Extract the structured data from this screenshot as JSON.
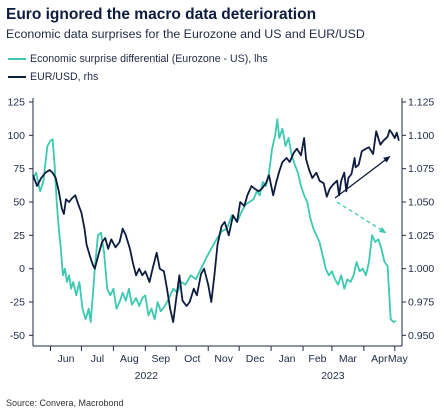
{
  "title": "Euro ignored the macro data deterioration",
  "subtitle": "Economic data surprises for the Eurozone and US and EUR/USD",
  "source": "Source: Convera, Macrobond",
  "colors": {
    "surprise": "#3cc9b0",
    "eurusd": "#0d1b3e",
    "axis": "#1f2a44",
    "grid": "#ffffff"
  },
  "chart_data": {
    "type": "line",
    "title": "Euro ignored the macro data deterioration",
    "subtitle": "Economic data surprises for the Eurozone and US and EUR/USD",
    "legend_position": "top-left",
    "grid": false,
    "x_tick_labels": [
      "Jun",
      "Jul",
      "Aug",
      "Sep",
      "Oct",
      "Nov",
      "Dec",
      "Jan",
      "Feb",
      "Mar",
      "Apr",
      "May"
    ],
    "x_tick_dates": [
      "2022-06-01",
      "2022-07-01",
      "2022-08-01",
      "2022-09-01",
      "2022-10-01",
      "2022-11-01",
      "2022-12-01",
      "2023-01-01",
      "2023-02-01",
      "2023-03-01",
      "2023-04-01",
      "2023-05-01"
    ],
    "year_labels": [
      {
        "label": "2022",
        "date": "2022-09-01"
      },
      {
        "label": "2023",
        "date": "2023-03-01"
      }
    ],
    "xlim": [
      "2022-05-15",
      "2023-05-08"
    ],
    "y_left": {
      "ylim": [
        -55,
        125
      ],
      "ticks": [
        125,
        100,
        75,
        50,
        25,
        0,
        -25,
        -50
      ],
      "tick_labels": [
        "125",
        "100",
        "75",
        "50",
        "25",
        "0",
        "-25",
        "-50"
      ]
    },
    "y_right": {
      "ylim": [
        0.945,
        1.125
      ],
      "ticks": [
        1.125,
        1.1,
        1.075,
        1.05,
        1.025,
        1.0,
        0.975,
        0.95
      ],
      "tick_labels": [
        "1.125",
        "1.100",
        "1.075",
        "1.050",
        "1.025",
        "1.000",
        "0.975",
        "0.950"
      ]
    },
    "series": [
      {
        "name": "Economic surprise differential (Eurozone - US), lhs",
        "axis": "left",
        "color": "#3cc9b0",
        "points": [
          [
            "2022-05-15",
            68
          ],
          [
            "2022-05-18",
            72
          ],
          [
            "2022-05-22",
            58
          ],
          [
            "2022-05-25",
            65
          ],
          [
            "2022-05-29",
            92
          ],
          [
            "2022-06-01",
            96
          ],
          [
            "2022-06-03",
            97
          ],
          [
            "2022-06-05",
            78
          ],
          [
            "2022-06-07",
            50
          ],
          [
            "2022-06-09",
            30
          ],
          [
            "2022-06-11",
            15
          ],
          [
            "2022-06-13",
            -5
          ],
          [
            "2022-06-15",
            0
          ],
          [
            "2022-06-17",
            -10
          ],
          [
            "2022-06-19",
            -5
          ],
          [
            "2022-06-21",
            -15
          ],
          [
            "2022-06-23",
            -10
          ],
          [
            "2022-06-26",
            -20
          ],
          [
            "2022-06-29",
            -10
          ],
          [
            "2022-07-02",
            -30
          ],
          [
            "2022-07-05",
            -38
          ],
          [
            "2022-07-08",
            -30
          ],
          [
            "2022-07-10",
            -40
          ],
          [
            "2022-07-12",
            -20
          ],
          [
            "2022-07-14",
            0
          ],
          [
            "2022-07-17",
            25
          ],
          [
            "2022-07-20",
            27
          ],
          [
            "2022-07-23",
            12
          ],
          [
            "2022-07-26",
            -15
          ],
          [
            "2022-07-29",
            -20
          ],
          [
            "2022-08-01",
            -15
          ],
          [
            "2022-08-04",
            -30
          ],
          [
            "2022-08-07",
            -25
          ],
          [
            "2022-08-10",
            -18
          ],
          [
            "2022-08-13",
            -24
          ],
          [
            "2022-08-16",
            -15
          ],
          [
            "2022-08-19",
            -27
          ],
          [
            "2022-08-23",
            -22
          ],
          [
            "2022-08-26",
            -28
          ],
          [
            "2022-08-29",
            -22
          ],
          [
            "2022-09-01",
            -20
          ],
          [
            "2022-09-04",
            -35
          ],
          [
            "2022-09-07",
            -30
          ],
          [
            "2022-09-10",
            -38
          ],
          [
            "2022-09-13",
            -25
          ],
          [
            "2022-09-16",
            -32
          ],
          [
            "2022-09-20",
            -28
          ],
          [
            "2022-09-24",
            -22
          ],
          [
            "2022-09-28",
            -15
          ],
          [
            "2022-10-02",
            -18
          ],
          [
            "2022-10-06",
            -10
          ],
          [
            "2022-10-10",
            -12
          ],
          [
            "2022-10-15",
            -5
          ],
          [
            "2022-10-20",
            -8
          ],
          [
            "2022-10-25",
            0
          ],
          [
            "2022-10-30",
            8
          ],
          [
            "2022-11-04",
            15
          ],
          [
            "2022-11-09",
            22
          ],
          [
            "2022-11-14",
            28
          ],
          [
            "2022-11-19",
            30
          ],
          [
            "2022-11-24",
            40
          ],
          [
            "2022-11-29",
            35
          ],
          [
            "2022-12-03",
            42
          ],
          [
            "2022-12-07",
            48
          ],
          [
            "2022-12-11",
            50
          ],
          [
            "2022-12-15",
            52
          ],
          [
            "2022-12-18",
            58
          ],
          [
            "2022-12-21",
            55
          ],
          [
            "2022-12-24",
            65
          ],
          [
            "2022-12-27",
            62
          ],
          [
            "2022-12-30",
            72
          ],
          [
            "2023-01-02",
            90
          ],
          [
            "2023-01-05",
            100
          ],
          [
            "2023-01-07",
            112
          ],
          [
            "2023-01-09",
            98
          ],
          [
            "2023-01-12",
            105
          ],
          [
            "2023-01-15",
            92
          ],
          [
            "2023-01-18",
            98
          ],
          [
            "2023-01-21",
            85
          ],
          [
            "2023-01-24",
            78
          ],
          [
            "2023-01-27",
            72
          ],
          [
            "2023-01-30",
            62
          ],
          [
            "2023-02-02",
            55
          ],
          [
            "2023-02-05",
            50
          ],
          [
            "2023-02-08",
            38
          ],
          [
            "2023-02-11",
            30
          ],
          [
            "2023-02-14",
            25
          ],
          [
            "2023-02-17",
            20
          ],
          [
            "2023-02-20",
            10
          ],
          [
            "2023-02-23",
            0
          ],
          [
            "2023-02-26",
            -5
          ],
          [
            "2023-03-01",
            -2
          ],
          [
            "2023-03-04",
            -8
          ],
          [
            "2023-03-07",
            -12
          ],
          [
            "2023-03-10",
            -5
          ],
          [
            "2023-03-13",
            -15
          ],
          [
            "2023-03-16",
            -8
          ],
          [
            "2023-03-19",
            -10
          ],
          [
            "2023-03-22",
            -5
          ],
          [
            "2023-03-25",
            5
          ],
          [
            "2023-03-28",
            -2
          ],
          [
            "2023-03-31",
            0
          ],
          [
            "2023-04-03",
            -5
          ],
          [
            "2023-04-06",
            5
          ],
          [
            "2023-04-09",
            25
          ],
          [
            "2023-04-12",
            20
          ],
          [
            "2023-04-15",
            22
          ],
          [
            "2023-04-18",
            15
          ],
          [
            "2023-04-21",
            5
          ],
          [
            "2023-04-24",
            2
          ],
          [
            "2023-04-27",
            -38
          ],
          [
            "2023-04-30",
            -40
          ],
          [
            "2023-05-02",
            -39
          ]
        ]
      },
      {
        "name": "EUR/USD, rhs",
        "axis": "right",
        "color": "#0d1b3e",
        "points": [
          [
            "2022-05-15",
            1.07
          ],
          [
            "2022-05-19",
            1.062
          ],
          [
            "2022-05-23",
            1.068
          ],
          [
            "2022-05-27",
            1.072
          ],
          [
            "2022-05-31",
            1.074
          ],
          [
            "2022-06-03",
            1.072
          ],
          [
            "2022-06-06",
            1.068
          ],
          [
            "2022-06-09",
            1.058
          ],
          [
            "2022-06-12",
            1.045
          ],
          [
            "2022-06-14",
            1.041
          ],
          [
            "2022-06-16",
            1.052
          ],
          [
            "2022-06-19",
            1.05
          ],
          [
            "2022-06-22",
            1.053
          ],
          [
            "2022-06-25",
            1.055
          ],
          [
            "2022-06-28",
            1.048
          ],
          [
            "2022-07-01",
            1.042
          ],
          [
            "2022-07-04",
            1.03
          ],
          [
            "2022-07-06",
            1.018
          ],
          [
            "2022-07-09",
            1.01
          ],
          [
            "2022-07-12",
            1.003
          ],
          [
            "2022-07-14",
            1.0
          ],
          [
            "2022-07-18",
            1.012
          ],
          [
            "2022-07-21",
            1.02
          ],
          [
            "2022-07-24",
            1.023
          ],
          [
            "2022-07-27",
            1.015
          ],
          [
            "2022-07-30",
            1.022
          ],
          [
            "2022-08-03",
            1.016
          ],
          [
            "2022-08-07",
            1.02
          ],
          [
            "2022-08-10",
            1.03
          ],
          [
            "2022-08-13",
            1.025
          ],
          [
            "2022-08-17",
            1.015
          ],
          [
            "2022-08-20",
            1.004
          ],
          [
            "2022-08-23",
            0.995
          ],
          [
            "2022-08-26",
            1.0
          ],
          [
            "2022-08-29",
            0.995
          ],
          [
            "2022-09-01",
            0.998
          ],
          [
            "2022-09-05",
            0.99
          ],
          [
            "2022-09-08",
            1.0
          ],
          [
            "2022-09-12",
            1.012
          ],
          [
            "2022-09-15",
            1.0
          ],
          [
            "2022-09-19",
            0.998
          ],
          [
            "2022-09-22",
            0.985
          ],
          [
            "2022-09-25",
            0.97
          ],
          [
            "2022-09-28",
            0.96
          ],
          [
            "2022-10-01",
            0.978
          ],
          [
            "2022-10-04",
            0.995
          ],
          [
            "2022-10-07",
            0.976
          ],
          [
            "2022-10-11",
            0.972
          ],
          [
            "2022-10-14",
            0.975
          ],
          [
            "2022-10-18",
            0.985
          ],
          [
            "2022-10-21",
            0.98
          ],
          [
            "2022-10-25",
            0.996
          ],
          [
            "2022-10-28",
            1.0
          ],
          [
            "2022-11-01",
            0.988
          ],
          [
            "2022-11-04",
            0.975
          ],
          [
            "2022-11-07",
            0.995
          ],
          [
            "2022-11-10",
            1.018
          ],
          [
            "2022-11-14",
            1.032
          ],
          [
            "2022-11-17",
            1.035
          ],
          [
            "2022-11-21",
            1.025
          ],
          [
            "2022-11-25",
            1.04
          ],
          [
            "2022-11-29",
            1.035
          ],
          [
            "2022-12-02",
            1.05
          ],
          [
            "2022-12-06",
            1.047
          ],
          [
            "2022-12-09",
            1.055
          ],
          [
            "2022-12-13",
            1.062
          ],
          [
            "2022-12-16",
            1.06
          ],
          [
            "2022-12-20",
            1.058
          ],
          [
            "2022-12-23",
            1.06
          ],
          [
            "2022-12-27",
            1.064
          ],
          [
            "2022-12-30",
            1.07
          ],
          [
            "2023-01-03",
            1.055
          ],
          [
            "2023-01-06",
            1.065
          ],
          [
            "2023-01-09",
            1.073
          ],
          [
            "2023-01-12",
            1.08
          ],
          [
            "2023-01-16",
            1.083
          ],
          [
            "2023-01-19",
            1.08
          ],
          [
            "2023-01-23",
            1.087
          ],
          [
            "2023-01-26",
            1.09
          ],
          [
            "2023-01-30",
            1.085
          ],
          [
            "2023-02-02",
            1.098
          ],
          [
            "2023-02-04",
            1.082
          ],
          [
            "2023-02-07",
            1.074
          ],
          [
            "2023-02-10",
            1.068
          ],
          [
            "2023-02-14",
            1.072
          ],
          [
            "2023-02-17",
            1.066
          ],
          [
            "2023-02-21",
            1.064
          ],
          [
            "2023-02-24",
            1.054
          ],
          [
            "2023-02-27",
            1.06
          ],
          [
            "2023-03-02",
            1.063
          ],
          [
            "2023-03-06",
            1.066
          ],
          [
            "2023-03-08",
            1.055
          ],
          [
            "2023-03-10",
            1.066
          ],
          [
            "2023-03-13",
            1.072
          ],
          [
            "2023-03-15",
            1.058
          ],
          [
            "2023-03-17",
            1.068
          ],
          [
            "2023-03-20",
            1.071
          ],
          [
            "2023-03-23",
            1.083
          ],
          [
            "2023-03-24",
            1.076
          ],
          [
            "2023-03-27",
            1.078
          ],
          [
            "2023-03-30",
            1.088
          ],
          [
            "2023-04-03",
            1.09
          ],
          [
            "2023-04-06",
            1.091
          ],
          [
            "2023-04-10",
            1.086
          ],
          [
            "2023-04-13",
            1.103
          ],
          [
            "2023-04-17",
            1.093
          ],
          [
            "2023-04-20",
            1.096
          ],
          [
            "2023-04-24",
            1.099
          ],
          [
            "2023-04-26",
            1.104
          ],
          [
            "2023-04-28",
            1.102
          ],
          [
            "2023-05-01",
            1.098
          ],
          [
            "2023-05-03",
            1.102
          ],
          [
            "2023-05-05",
            1.096
          ]
        ]
      }
    ],
    "annotations": [
      {
        "type": "arrow",
        "series": "EUR/USD, rhs",
        "color": "#0d1b3e",
        "from": [
          "2023-03-04",
          1.053
        ],
        "to": [
          "2023-04-26",
          1.084
        ]
      },
      {
        "type": "arrow",
        "series": "Economic surprise differential (Eurozone - US), lhs",
        "color": "#3cc9b0",
        "from": [
          "2023-03-06",
          50
        ],
        "to": [
          "2023-04-22",
          27
        ]
      }
    ]
  }
}
